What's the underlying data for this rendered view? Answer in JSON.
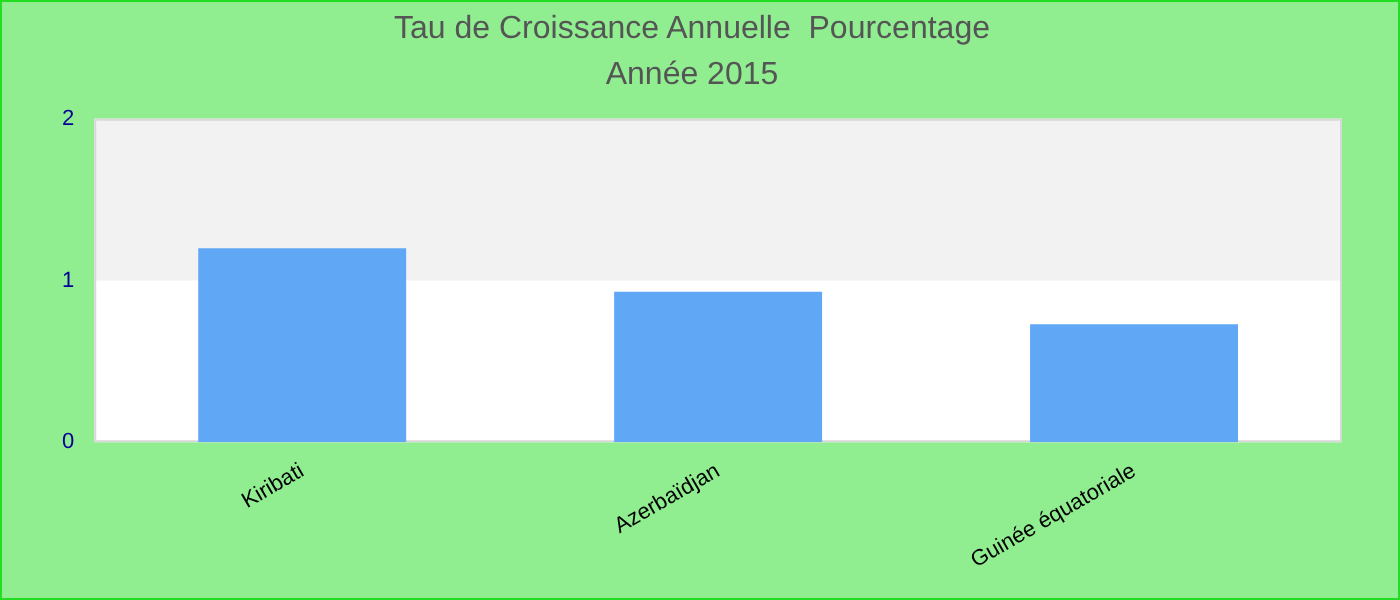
{
  "chart_data": {
    "type": "bar",
    "title": "Tau de Croissance Annuelle  Pourcentage",
    "subtitle": "Année 2015",
    "categories": [
      "Kiribati",
      "Azerbaïdjan",
      "Guinée équatoriale"
    ],
    "values": [
      1.2,
      0.93,
      0.73
    ],
    "color": "#60a8f5",
    "ylim": [
      0,
      2
    ],
    "yticks": [
      0,
      1,
      2
    ],
    "bands": [
      {
        "axis": "y",
        "from": 1,
        "to": 2,
        "color": "#f2f2f2"
      }
    ],
    "grid": false,
    "legend": false
  }
}
